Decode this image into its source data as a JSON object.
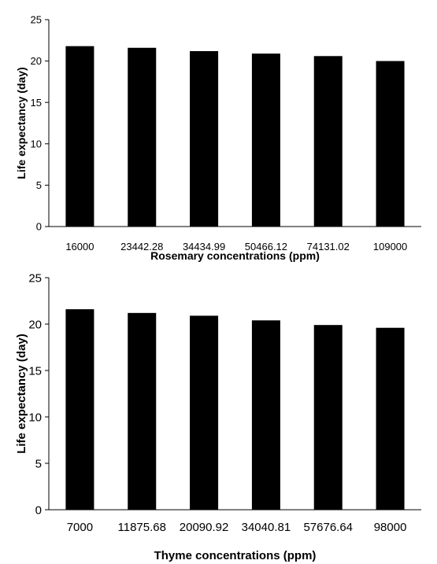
{
  "chart_data": [
    {
      "type": "bar",
      "categories": [
        "16000",
        "23442.28",
        "34434.99",
        "50466.12",
        "74131.02",
        "109000"
      ],
      "values": [
        21.8,
        21.6,
        21.2,
        20.9,
        20.6,
        20.0
      ],
      "xlabel": "Rosemary concentrations (ppm)",
      "ylabel": "Life expectancy (day)",
      "ylim": [
        0,
        25
      ],
      "yticks": [
        "0",
        "5",
        "10",
        "15",
        "20",
        "25"
      ],
      "grid": false,
      "bar_color": "#000000"
    },
    {
      "type": "bar",
      "categories": [
        "7000",
        "11875.68",
        "20090.92",
        "34040.81",
        "57676.64",
        "98000"
      ],
      "values": [
        21.6,
        21.2,
        20.9,
        20.4,
        19.9,
        19.6
      ],
      "xlabel": "Thyme concentrations (ppm)",
      "ylabel": "Life expectancy (day)",
      "ylim": [
        0,
        25
      ],
      "yticks": [
        "0",
        "5",
        "10",
        "15",
        "20",
        "25"
      ],
      "grid": false,
      "bar_color": "#000000"
    }
  ]
}
